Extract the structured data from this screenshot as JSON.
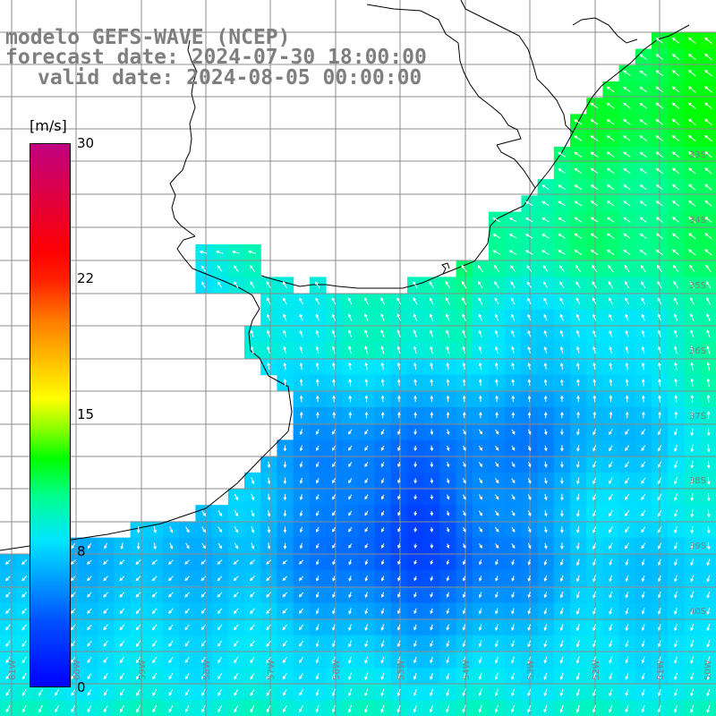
{
  "title": {
    "line1": "modelo GEFS-WAVE (NCEP)",
    "line2": "forecast date: 2024-07-30 18:00:00",
    "line3": "valid date: 2024-08-05 00:00:00"
  },
  "colorbar": {
    "unit": "[m/s]",
    "range": [
      0,
      30
    ],
    "ticks": [
      "30",
      "22",
      "15",
      "8",
      "0"
    ]
  },
  "map": {
    "lat_labels": [
      "33S",
      "34S",
      "35S",
      "36S",
      "37S",
      "38S",
      "39S",
      "40S"
    ],
    "lon_labels": [
      "61W",
      "60W",
      "59W",
      "58W",
      "57W",
      "56W",
      "55W",
      "54W",
      "53W",
      "52W",
      "51W",
      "50W"
    ],
    "colors": {
      "land": "#ffffff",
      "grid": "#8c8c8c",
      "coast": "#000000",
      "arrow": "#ffffff",
      "label": "#7f7f7f"
    }
  }
}
